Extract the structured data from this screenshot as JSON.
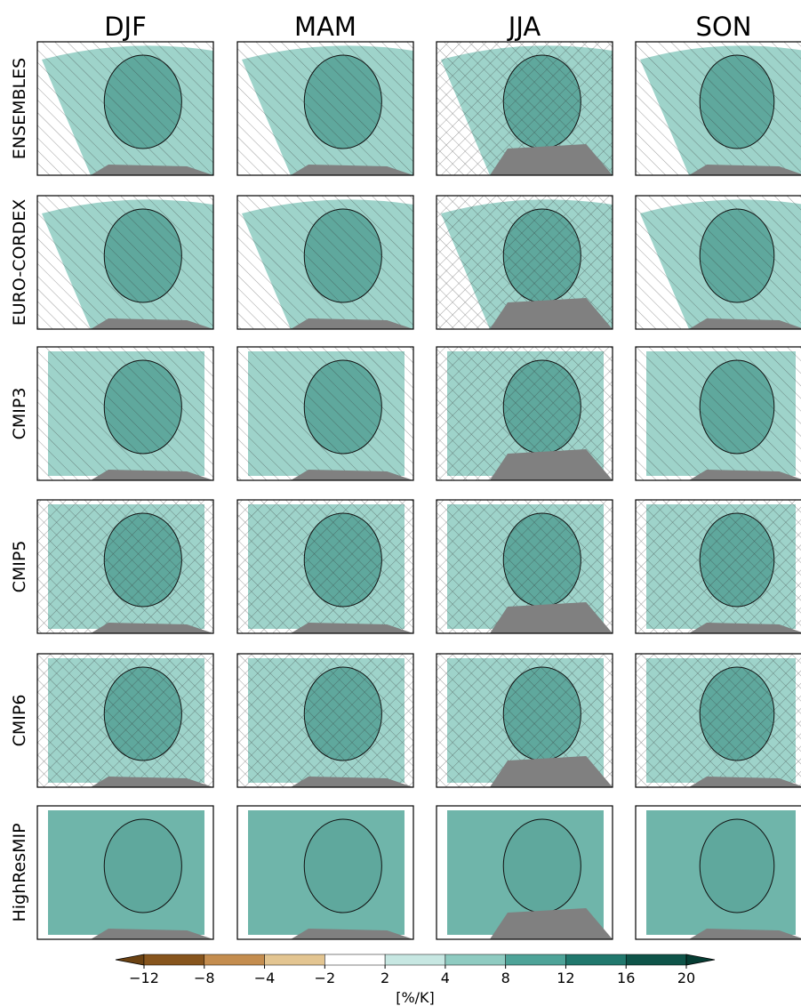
{
  "columns": [
    "DJF",
    "MAM",
    "JJA",
    "SON"
  ],
  "rows": [
    "ENSEMBLES",
    "EURO-CORDEX",
    "CMIP3",
    "CMIP5",
    "CMIP6",
    "HighResMIP"
  ],
  "colorbar": {
    "ticks": [
      {
        "value": -12,
        "label": "−12"
      },
      {
        "value": -8,
        "label": "−8"
      },
      {
        "value": -4,
        "label": "−4"
      },
      {
        "value": -2,
        "label": "−2"
      },
      2,
      4,
      8,
      12,
      16,
      20
    ],
    "colors": [
      "#6b4212",
      "#87551d",
      "#c48d4f",
      "#e3c591",
      "#ffffff",
      "#c7e7e2",
      "#8fcbc1",
      "#4ea398",
      "#21786d",
      "#0e5449",
      "#063d33"
    ],
    "label": "[%/K]"
  }
}
